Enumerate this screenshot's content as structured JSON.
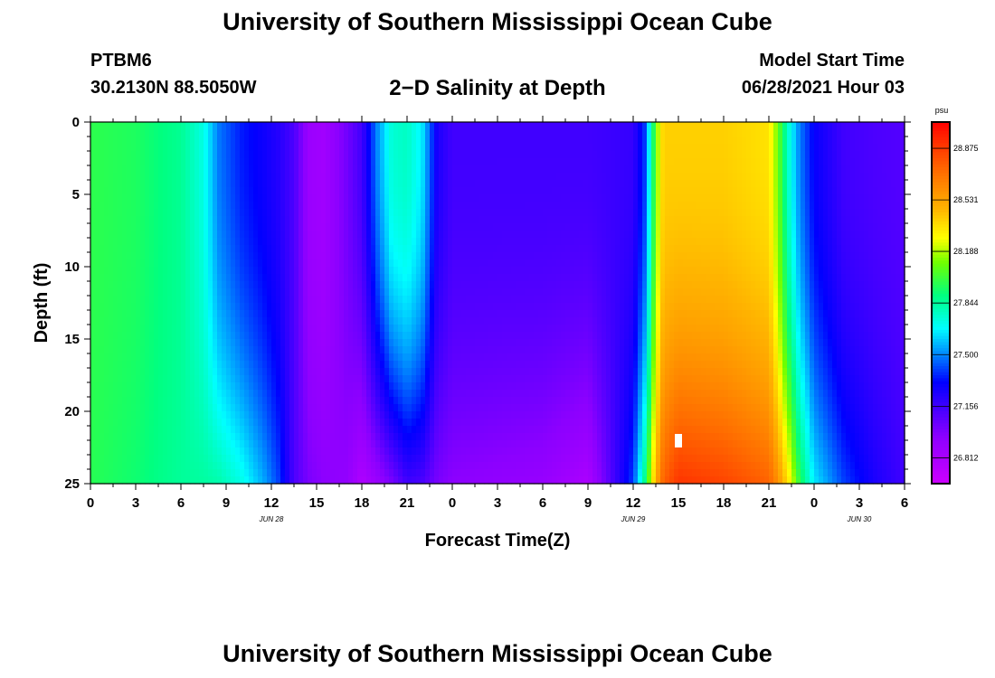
{
  "header": {
    "title": "University of Southern Mississippi Ocean Cube",
    "station": "PTBM6",
    "coordinates": "30.2130N  88.5050W",
    "chart_title": "2−D Salinity at Depth",
    "model_start_label": "Model Start Time",
    "model_start_value": "06/28/2021 Hour 03"
  },
  "footer": {
    "title": "University of Southern Mississippi Ocean Cube"
  },
  "chart_data": {
    "type": "heatmap",
    "title": "2−D Salinity at Depth",
    "xlabel": "Forecast Time(Z)",
    "ylabel": "Depth (ft)",
    "x_range_hours": [
      0,
      54
    ],
    "y_range_ft": [
      0,
      25
    ],
    "x_tick_labels": [
      "0",
      "3",
      "6",
      "9",
      "12",
      "15",
      "18",
      "21",
      "0",
      "3",
      "6",
      "9",
      "12",
      "15",
      "18",
      "21",
      "0",
      "3",
      "6"
    ],
    "y_tick_labels": [
      "0",
      "5",
      "10",
      "15",
      "20",
      "25"
    ],
    "date_labels": [
      {
        "text": "JUN 28",
        "hour": 12
      },
      {
        "text": "JUN 29",
        "hour": 36
      },
      {
        "text": "JUN 30",
        "hour": 51
      }
    ],
    "colorbar": {
      "unit": "psu",
      "min": 26.64,
      "max": 29.05,
      "ticks": [
        "28.875",
        "28.531",
        "28.188",
        "27.844",
        "27.500",
        "27.156",
        "26.812"
      ]
    },
    "current_time_marker_hour": 39,
    "current_time_marker_depth_ft": 22,
    "profiles": [
      {
        "hour": 0,
        "surface": 27.98,
        "bottom": 27.97
      },
      {
        "hour": 3,
        "surface": 27.95,
        "bottom": 27.92
      },
      {
        "hour": 4.5,
        "surface": 27.9,
        "bottom": 27.88
      },
      {
        "hour": 6,
        "surface": 27.86,
        "bottom": 27.85
      },
      {
        "hour": 7.5,
        "surface": 27.72,
        "bottom": 27.84
      },
      {
        "hour": 8.5,
        "surface": 27.48,
        "bottom": 27.82
      },
      {
        "hour": 10,
        "surface": 27.35,
        "bottom": 27.72
      },
      {
        "hour": 11.5,
        "surface": 27.28,
        "bottom": 27.55
      },
      {
        "hour": 12.5,
        "surface": 27.22,
        "bottom": 27.4
      },
      {
        "hour": 13.5,
        "surface": 27.12,
        "bottom": 27.12
      },
      {
        "hour": 14.5,
        "surface": 26.88,
        "bottom": 27.0
      },
      {
        "hour": 15.5,
        "surface": 26.85,
        "bottom": 26.95
      },
      {
        "hour": 17,
        "surface": 27.02,
        "bottom": 26.92
      },
      {
        "hour": 18,
        "surface": 27.15,
        "bottom": 26.78
      },
      {
        "hour": 19,
        "surface": 27.5,
        "bottom": 26.88
      },
      {
        "hour": 20,
        "surface": 27.75,
        "bottom": 27.0
      },
      {
        "hour": 21,
        "surface": 27.78,
        "bottom": 27.15
      },
      {
        "hour": 22,
        "surface": 27.65,
        "bottom": 27.12
      },
      {
        "hour": 23,
        "surface": 27.25,
        "bottom": 27.0
      },
      {
        "hour": 24,
        "surface": 27.15,
        "bottom": 26.95
      },
      {
        "hour": 30,
        "surface": 27.15,
        "bottom": 26.9
      },
      {
        "hour": 33,
        "surface": 27.15,
        "bottom": 26.8
      },
      {
        "hour": 36,
        "surface": 27.18,
        "bottom": 27.4
      },
      {
        "hour": 36.8,
        "surface": 27.4,
        "bottom": 27.9
      },
      {
        "hour": 37.5,
        "surface": 28.1,
        "bottom": 28.5
      },
      {
        "hour": 38,
        "surface": 28.4,
        "bottom": 28.75
      },
      {
        "hour": 39,
        "surface": 28.4,
        "bottom": 28.9
      },
      {
        "hour": 42,
        "surface": 28.4,
        "bottom": 28.85
      },
      {
        "hour": 45,
        "surface": 28.35,
        "bottom": 28.75
      },
      {
        "hour": 45.6,
        "surface": 28.1,
        "bottom": 28.6
      },
      {
        "hour": 46.3,
        "surface": 27.75,
        "bottom": 28.35
      },
      {
        "hour": 47,
        "surface": 27.5,
        "bottom": 28.0
      },
      {
        "hour": 48,
        "surface": 27.3,
        "bottom": 27.65
      },
      {
        "hour": 50,
        "surface": 27.15,
        "bottom": 27.4
      },
      {
        "hour": 52,
        "surface": 27.12,
        "bottom": 27.25
      },
      {
        "hour": 54,
        "surface": 27.1,
        "bottom": 27.15
      }
    ]
  }
}
